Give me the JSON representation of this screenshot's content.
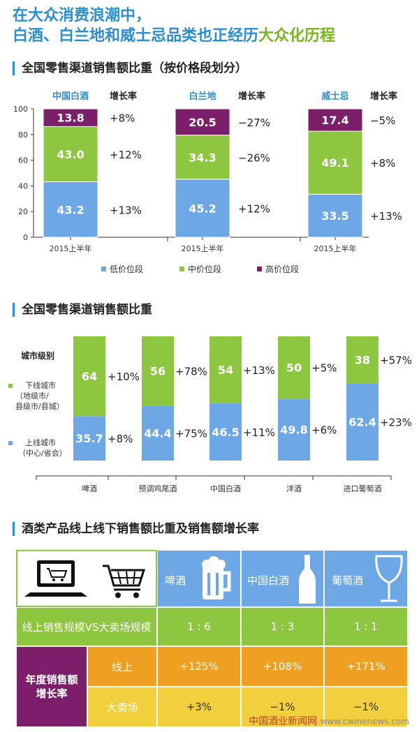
{
  "header": {
    "line1": "在大众消费浪潮中，",
    "line2_a": "白酒、白兰地和威士忌品类也正经历",
    "line2_b": "大众化历程"
  },
  "section1": {
    "title": "全国零售渠道销售额比重（按价格段划分）"
  },
  "section2": {
    "title": "全国零售渠道销售额比重",
    "city_level_label": "城市级别",
    "lower_city_label": [
      "下线城市",
      "（地级市/",
      "县级市/县城）"
    ],
    "upper_city_label": [
      "上线城市",
      "（中心/省会）"
    ]
  },
  "section3": {
    "title": "酒类产品线上线下销售额比重及销售额增长率"
  },
  "chart_data": [
    {
      "type": "bar",
      "stacked": true,
      "title": "全国零售渠道销售额比重（按价格段划分）",
      "groups": [
        "中国白酒",
        "白兰地",
        "威士忌"
      ],
      "categories": [
        "2015上半年",
        "2015上半年",
        "2015上半年"
      ],
      "growth_header": "增长率",
      "series": [
        {
          "name": "低价位段",
          "color": "#6ea7e6",
          "values": [
            43.2,
            45.2,
            33.5
          ],
          "growth": [
            "+13%",
            "+12%",
            "+13%"
          ]
        },
        {
          "name": "中价位段",
          "color": "#8dc63f",
          "values": [
            43.0,
            34.3,
            49.1
          ],
          "growth": [
            "+12%",
            "−26%",
            "+8%"
          ]
        },
        {
          "name": "高价位段",
          "color": "#7b1f6b",
          "values": [
            13.8,
            20.5,
            17.4
          ],
          "growth": [
            "+8%",
            "−27%",
            "−5%"
          ]
        }
      ],
      "ylim": [
        0,
        100
      ],
      "yticks": [
        0,
        20,
        40,
        60,
        80,
        100
      ],
      "legend": "bottom"
    },
    {
      "type": "bar",
      "stacked": true,
      "title": "全国零售渠道销售额比重",
      "categories": [
        "啤酒",
        "预调鸡尾酒",
        "中国白酒",
        "洋酒",
        "进口葡萄酒"
      ],
      "series": [
        {
          "name": "上线城市（中心/省会）",
          "color": "#6ea7e6",
          "values": [
            35.7,
            44.4,
            46.5,
            49.8,
            62.4
          ],
          "growth": [
            "+8%",
            "+75%",
            "+11%",
            "+6%",
            "+23%"
          ]
        },
        {
          "name": "下线城市（地级市/县级市/县城）",
          "color": "#8dc63f",
          "values": [
            64,
            56,
            54,
            50,
            38
          ],
          "growth": [
            "+10%",
            "+78%",
            "+13%",
            "+5%",
            "+57%"
          ]
        }
      ]
    },
    {
      "type": "table",
      "title": "酒类产品线上线下销售额比重及销售额增长率",
      "columns": [
        "啤酒",
        "中国白酒",
        "葡萄酒"
      ],
      "rows": [
        {
          "label": "线上销售规模VS大卖场规模",
          "values": [
            "1 : 6",
            "1 : 3",
            "1 : 1"
          ]
        },
        {
          "group": "年度销售额增长率",
          "label": "线上",
          "values": [
            "+125%",
            "+108%",
            "+171%"
          ]
        },
        {
          "group": "年度销售额增长率",
          "label": "大卖场",
          "values": [
            "+3%",
            "−1%",
            "−1%"
          ]
        }
      ]
    }
  ],
  "table": {
    "group_label_1": "年度销售额",
    "group_label_2": "增长率"
  },
  "colors": {
    "low": "#6ea7e6",
    "mid": "#8dc63f",
    "high": "#7b1f6b",
    "title_blue": "#2a8fd0",
    "title_green": "#7ab51d",
    "online": "#f0a020",
    "hypermarket": "#f2cf3c"
  },
  "watermark": {
    "cn": "中国酒业新闻网",
    "url": "www.cwinenews.com"
  }
}
